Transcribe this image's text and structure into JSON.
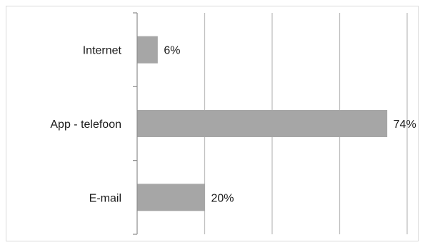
{
  "chart_data": {
    "type": "bar",
    "orientation": "horizontal",
    "title": "",
    "xlabel": "",
    "ylabel": "",
    "categories": [
      "Internet",
      "App - telefoon",
      "E-mail"
    ],
    "values": [
      6,
      74,
      20
    ],
    "data_labels": [
      "6%",
      "74%",
      "20%"
    ],
    "xlim": [
      0,
      80
    ],
    "gridlines": [
      20,
      40,
      60,
      80
    ],
    "grid": true,
    "legend": "none",
    "bar_color": "#a6a6a6",
    "grid_color": "#bfbfbf"
  }
}
